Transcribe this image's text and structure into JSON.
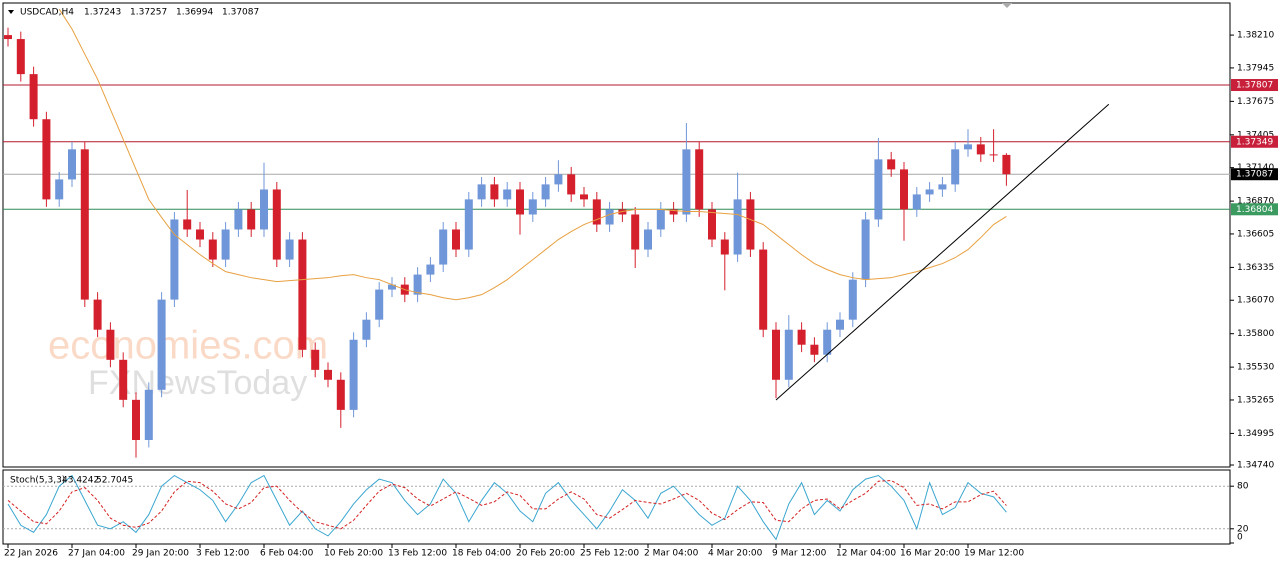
{
  "chart_data": [
    {
      "type": "candlestick",
      "title": "USDCAD,H4",
      "categories": [
        "22 Jan 2026",
        null,
        null,
        null,
        null,
        "27 Jan 04:00",
        null,
        null,
        null,
        null,
        "29 Jan 20:00",
        null,
        null,
        null,
        null,
        "3 Feb 12:00",
        null,
        null,
        null,
        null,
        "6 Feb 04:00",
        null,
        null,
        null,
        null,
        "10 Feb 20:00",
        null,
        null,
        null,
        null,
        "13 Feb 12:00",
        null,
        null,
        null,
        null,
        "18 Feb 04:00",
        null,
        null,
        null,
        null,
        "20 Feb 20:00",
        null,
        null,
        null,
        null,
        "25 Feb 12:00",
        null,
        null,
        null,
        null,
        "2 Mar 04:00",
        null,
        null,
        null,
        null,
        "4 Mar 20:00",
        null,
        null,
        null,
        null,
        "9 Mar 12:00",
        null,
        null,
        null,
        null,
        "12 Mar 04:00",
        null,
        null,
        null,
        null,
        "16 Mar 20:00",
        null,
        null,
        null,
        null,
        "19 Mar 12:00",
        null,
        null,
        null
      ],
      "open": [
        1.3821,
        1.38178,
        1.37895,
        1.37531,
        1.36884,
        1.37045,
        1.37288,
        1.36075,
        1.35832,
        1.35589,
        1.35266,
        1.34942,
        1.35347,
        1.36075,
        1.36722,
        1.36641,
        1.3656,
        1.36398,
        1.36641,
        1.36803,
        1.36641,
        1.36964,
        1.36398,
        1.3656,
        1.3567,
        1.35508,
        1.35428,
        1.35185,
        1.35751,
        1.35913,
        1.36156,
        1.36196,
        1.36115,
        1.36277,
        1.36358,
        1.36641,
        1.36479,
        1.36884,
        1.37005,
        1.36884,
        1.36964,
        1.36762,
        1.36884,
        1.37005,
        1.37086,
        1.36924,
        1.36884,
        1.36681,
        1.36803,
        1.36762,
        1.36479,
        1.36641,
        1.36803,
        1.36762,
        1.37288,
        1.36803,
        1.3656,
        1.36439,
        1.36884,
        1.36479,
        1.35832,
        1.35428,
        1.35832,
        1.35711,
        1.3563,
        1.35832,
        1.35913,
        1.36236,
        1.36722,
        1.37207,
        1.37126,
        1.36803,
        1.36924,
        1.36964,
        1.37005,
        1.37288,
        1.37328,
        1.37247,
        1.37243
      ],
      "high": [
        1.3827,
        1.38238,
        1.37955,
        1.37591,
        1.37105,
        1.37348,
        1.37348,
        1.36135,
        1.35892,
        1.35649,
        1.35326,
        1.35407,
        1.36135,
        1.36782,
        1.3696,
        1.36701,
        1.3662,
        1.36701,
        1.36863,
        1.36863,
        1.3718,
        1.37024,
        1.3662,
        1.3662,
        1.3573,
        1.35568,
        1.35488,
        1.35811,
        1.35973,
        1.36216,
        1.36256,
        1.36256,
        1.36337,
        1.36418,
        1.36701,
        1.36701,
        1.36944,
        1.37065,
        1.37065,
        1.37024,
        1.37024,
        1.36944,
        1.37065,
        1.372,
        1.37146,
        1.36984,
        1.36944,
        1.36863,
        1.36863,
        1.36822,
        1.36701,
        1.36863,
        1.36863,
        1.375,
        1.37348,
        1.36863,
        1.3662,
        1.371,
        1.36944,
        1.36539,
        1.35892,
        1.3595,
        1.35892,
        1.35771,
        1.35892,
        1.35973,
        1.36296,
        1.36782,
        1.3738,
        1.37267,
        1.37186,
        1.36984,
        1.37024,
        1.37065,
        1.37348,
        1.3745,
        1.37388,
        1.3745,
        1.37257
      ],
      "low": [
        1.38118,
        1.37835,
        1.37471,
        1.36824,
        1.36824,
        1.36985,
        1.36015,
        1.35772,
        1.35529,
        1.35206,
        1.348,
        1.34882,
        1.35287,
        1.36015,
        1.36581,
        1.365,
        1.36338,
        1.36338,
        1.36581,
        1.36581,
        1.36581,
        1.36338,
        1.36338,
        1.3561,
        1.35448,
        1.35368,
        1.3504,
        1.35125,
        1.35691,
        1.35853,
        1.36096,
        1.36055,
        1.36055,
        1.36217,
        1.36298,
        1.36419,
        1.36419,
        1.36824,
        1.36824,
        1.36824,
        1.366,
        1.36702,
        1.36824,
        1.36945,
        1.36864,
        1.36824,
        1.36621,
        1.36621,
        1.36702,
        1.3633,
        1.36419,
        1.36581,
        1.36702,
        1.36702,
        1.36743,
        1.365,
        1.3615,
        1.36379,
        1.36419,
        1.35772,
        1.3528,
        1.35368,
        1.35651,
        1.3557,
        1.3557,
        1.35772,
        1.35853,
        1.36176,
        1.36662,
        1.37066,
        1.3655,
        1.36743,
        1.36864,
        1.36904,
        1.36945,
        1.37228,
        1.37187,
        1.37187,
        1.36994
      ],
      "close": [
        1.38178,
        1.37895,
        1.37531,
        1.36884,
        1.37045,
        1.37288,
        1.36075,
        1.35832,
        1.35589,
        1.35266,
        1.34942,
        1.35347,
        1.36075,
        1.36722,
        1.36641,
        1.3656,
        1.36398,
        1.36641,
        1.36803,
        1.36641,
        1.36964,
        1.36398,
        1.3656,
        1.3567,
        1.35508,
        1.35428,
        1.35185,
        1.35751,
        1.35913,
        1.36156,
        1.36196,
        1.36115,
        1.36277,
        1.36358,
        1.36641,
        1.36479,
        1.36884,
        1.37005,
        1.36884,
        1.36964,
        1.36762,
        1.36884,
        1.37005,
        1.37086,
        1.36924,
        1.36884,
        1.36681,
        1.36803,
        1.36762,
        1.36479,
        1.36641,
        1.36803,
        1.36762,
        1.37288,
        1.36803,
        1.3656,
        1.36439,
        1.36884,
        1.36479,
        1.35832,
        1.35428,
        1.35832,
        1.35711,
        1.3563,
        1.35832,
        1.35913,
        1.36236,
        1.36722,
        1.37207,
        1.37126,
        1.36803,
        1.36924,
        1.36964,
        1.37005,
        1.37288,
        1.37328,
        1.37247,
        1.37243,
        1.37087
      ],
      "up_color": "#6f96d8",
      "down_color": "#d4202c",
      "ylim": [
        1.34724,
        1.38469
      ],
      "yticks": [
        {
          "value": 1.3821,
          "label": "1.38210"
        },
        {
          "value": 1.37945,
          "label": "1.37945"
        },
        {
          "value": 1.37675,
          "label": "1.37675"
        },
        {
          "value": 1.37405,
          "label": "1.37405"
        },
        {
          "value": 1.3714,
          "label": "1.37140"
        },
        {
          "value": 1.3687,
          "label": "1.36870"
        },
        {
          "value": 1.36605,
          "label": "1.36605"
        },
        {
          "value": 1.36335,
          "label": "1.36335"
        },
        {
          "value": 1.3607,
          "label": "1.36070"
        },
        {
          "value": 1.358,
          "label": "1.35800"
        },
        {
          "value": 1.3553,
          "label": "1.35530"
        },
        {
          "value": 1.35265,
          "label": "1.35265"
        },
        {
          "value": 1.34995,
          "label": "1.34995"
        },
        {
          "value": 1.3474,
          "label": "1.34740"
        }
      ],
      "grid": false,
      "ma": {
        "color": "#e8a040",
        "values": [
          null,
          null,
          null,
          null,
          1.3842,
          1.38259,
          1.38056,
          1.37854,
          1.37611,
          1.37369,
          1.37126,
          1.36883,
          1.36738,
          1.366,
          1.36519,
          1.36438,
          1.36366,
          1.36301,
          1.36277,
          1.36252,
          1.36236,
          1.3622,
          1.36228,
          1.36236,
          1.36244,
          1.36252,
          1.36268,
          1.36277,
          1.36252,
          1.36236,
          1.36196,
          1.36155,
          1.36131,
          1.36115,
          1.3609,
          1.36074,
          1.3609,
          1.36115,
          1.36171,
          1.36236,
          1.36317,
          1.36398,
          1.36479,
          1.3656,
          1.36624,
          1.36681,
          1.36721,
          1.36762,
          1.36786,
          1.36802,
          1.36802,
          1.36802,
          1.36794,
          1.36786,
          1.36786,
          1.36778,
          1.3677,
          1.36762,
          1.36721,
          1.36681,
          1.366,
          1.36519,
          1.36438,
          1.36366,
          1.36317,
          1.36277,
          1.36252,
          1.36236,
          1.36244,
          1.36252,
          1.36277,
          1.36301,
          1.36333,
          1.36366,
          1.36414,
          1.36479,
          1.36576,
          1.36681,
          1.36746
        ]
      },
      "levels": [
        {
          "value": 1.37807,
          "color": "#b0182c",
          "box": "#c8203a"
        },
        {
          "value": 1.37349,
          "color": "#b0182c",
          "box": "#c8203a"
        },
        {
          "value": 1.37087,
          "color": "#a8a8a8",
          "box": "#000000"
        },
        {
          "value": 1.36804,
          "color": "#2e8b57",
          "box": "#3a9a60"
        }
      ],
      "trendline": {
        "x": [
          60,
          86
        ],
        "values": [
          1.35265,
          1.37652
        ],
        "color": "#000000"
      },
      "watermarks": [
        "economies.com",
        "FXNewsToday"
      ]
    },
    {
      "type": "line",
      "title": "Stoch(5,3,3)",
      "ylim": [
        0,
        100
      ],
      "yticks": [
        80,
        20,
        0
      ],
      "level_lines": true,
      "series": [
        {
          "color": "#3aa6d0",
          "dash": false,
          "values": [
            55,
            25,
            15,
            40,
            80,
            95,
            60,
            25,
            20,
            30,
            15,
            40,
            80,
            95,
            85,
            75,
            60,
            30,
            55,
            85,
            95,
            60,
            25,
            45,
            20,
            10,
            30,
            55,
            75,
            90,
            85,
            60,
            40,
            55,
            90,
            70,
            30,
            60,
            85,
            70,
            45,
            30,
            70,
            85,
            60,
            40,
            20,
            45,
            75,
            60,
            35,
            70,
            80,
            60,
            40,
            25,
            35,
            80,
            60,
            30,
            5,
            55,
            85,
            40,
            60,
            45,
            75,
            90,
            95,
            80,
            60,
            20,
            85,
            40,
            50,
            85,
            70,
            65,
            43.4242
          ]
        },
        {
          "color": "#d42020",
          "dash": true,
          "values": [
            60,
            45,
            30,
            27,
            45,
            72,
            78,
            60,
            35,
            25,
            22,
            28,
            45,
            72,
            87,
            85,
            73,
            55,
            48,
            57,
            78,
            80,
            60,
            43,
            30,
            25,
            20,
            32,
            53,
            73,
            83,
            78,
            62,
            52,
            62,
            72,
            63,
            53,
            58,
            72,
            67,
            48,
            48,
            62,
            72,
            62,
            40,
            35,
            47,
            60,
            57,
            55,
            62,
            70,
            60,
            42,
            33,
            47,
            58,
            57,
            32,
            30,
            48,
            60,
            62,
            48,
            60,
            70,
            87,
            88,
            78,
            53,
            55,
            48,
            58,
            58,
            68,
            73,
            52.7045
          ]
        }
      ]
    }
  ]
}
